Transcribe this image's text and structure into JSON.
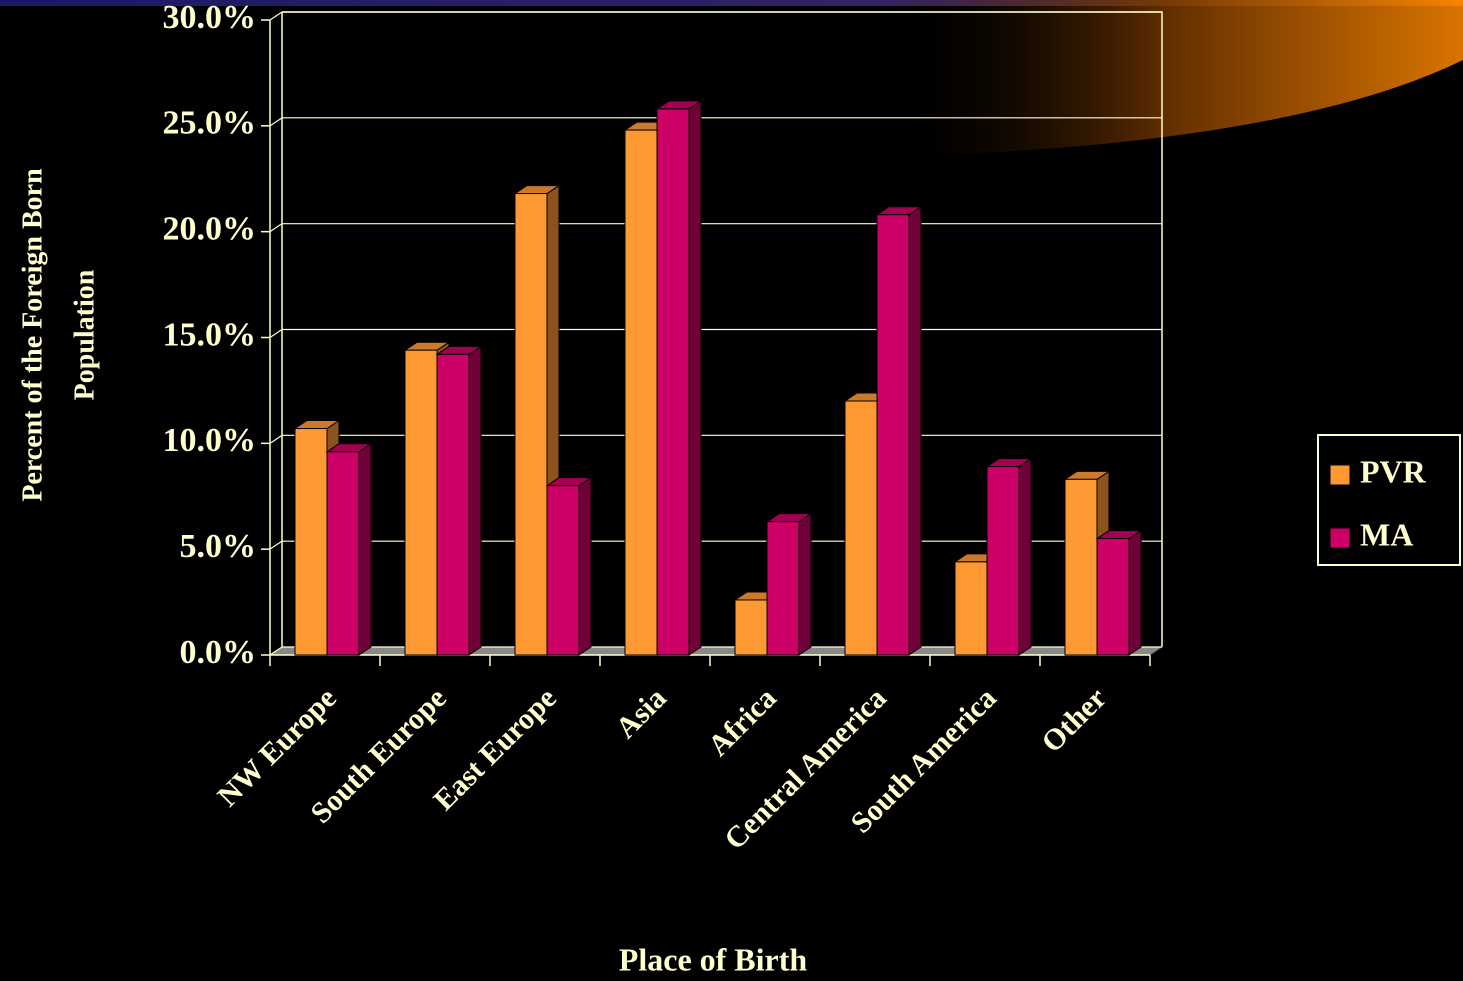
{
  "chart_data": {
    "type": "bar3d",
    "x_label": "Place of Birth",
    "y_label": [
      "Percent of the Foreign Born",
      "Population"
    ],
    "categories": [
      "NW Europe",
      "South Europe",
      "East Europe",
      "Asia",
      "Africa",
      "Central America",
      "South America",
      "Other"
    ],
    "series": [
      {
        "name": "PVR",
        "color": "#FF9933",
        "values": [
          10.7,
          14.4,
          21.8,
          24.8,
          2.6,
          12.0,
          4.4,
          8.3
        ]
      },
      {
        "name": "MA",
        "color": "#CC0066",
        "values": [
          9.6,
          14.2,
          8.0,
          25.8,
          6.3,
          20.8,
          8.9,
          5.5
        ]
      }
    ],
    "ylim": [
      0,
      30
    ],
    "yticks": [
      {
        "value": 0,
        "label": "0.0%"
      },
      {
        "value": 5,
        "label": "5.0%"
      },
      {
        "value": 10,
        "label": "10.0%"
      },
      {
        "value": 15,
        "label": "15.0%"
      },
      {
        "value": 20,
        "label": "20.0%"
      },
      {
        "value": 25,
        "label": "25.0%"
      },
      {
        "value": 30,
        "label": "30.0%"
      }
    ],
    "grid": true,
    "legend": "right"
  }
}
